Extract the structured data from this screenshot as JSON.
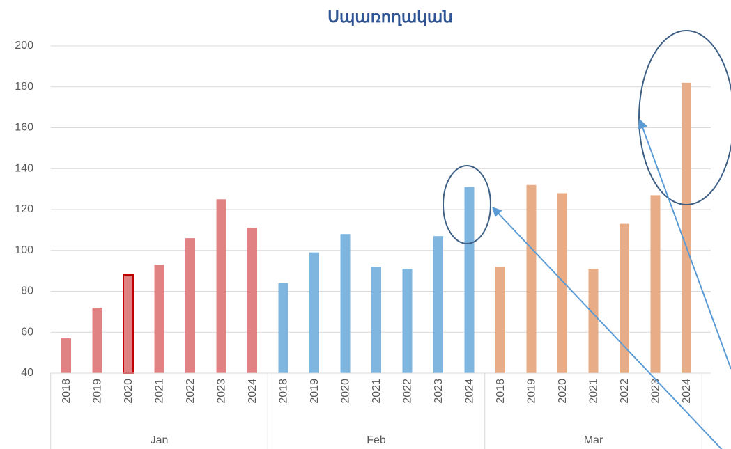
{
  "chart_data": {
    "type": "bar",
    "title": "Սպառողական",
    "ylim": [
      40,
      200
    ],
    "yticks": [
      40,
      60,
      80,
      100,
      120,
      140,
      160,
      180,
      200
    ],
    "grid": true,
    "series": [
      {
        "name": "Jan",
        "color": "#e08184",
        "highlight_index": 2,
        "highlight_color": "#c00000",
        "categories": [
          "2018",
          "2019",
          "2020",
          "2021",
          "2022",
          "2023",
          "2024"
        ],
        "values": [
          57,
          72,
          88,
          93,
          106,
          125,
          111
        ]
      },
      {
        "name": "Feb",
        "color": "#7fb6df",
        "categories": [
          "2018",
          "2019",
          "2020",
          "2021",
          "2022",
          "2023",
          "2024"
        ],
        "values": [
          84,
          99,
          108,
          92,
          91,
          107,
          131
        ]
      },
      {
        "name": "Mar",
        "color": "#e8ad86",
        "categories": [
          "2018",
          "2019",
          "2020",
          "2021",
          "2022",
          "2023",
          "2024"
        ],
        "values": [
          92,
          132,
          128,
          91,
          113,
          127,
          182
        ]
      }
    ]
  }
}
